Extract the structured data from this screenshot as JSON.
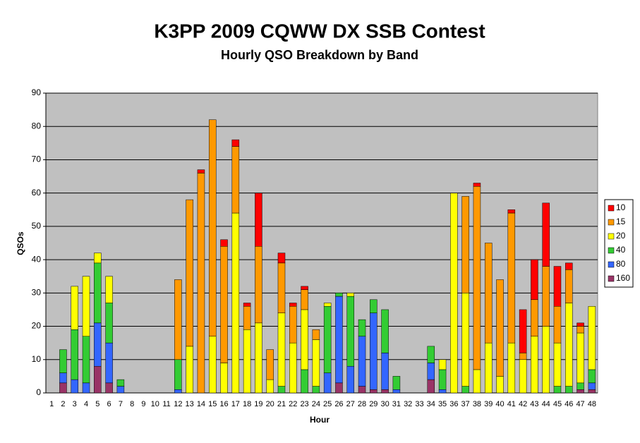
{
  "chart_data": {
    "type": "stacked-bar",
    "title": "K3PP 2009 CQWW DX SSB Contest",
    "subtitle": "Hourly QSO Breakdown by Band",
    "x_label": "Hour",
    "y_label": "QSOs",
    "categories": [
      "1",
      "2",
      "3",
      "4",
      "5",
      "6",
      "7",
      "8",
      "9",
      "10",
      "11",
      "12",
      "13",
      "14",
      "15",
      "16",
      "17",
      "18",
      "19",
      "20",
      "21",
      "22",
      "23",
      "24",
      "25",
      "26",
      "27",
      "28",
      "29",
      "30",
      "31",
      "32",
      "33",
      "34",
      "35",
      "36",
      "37",
      "38",
      "39",
      "40",
      "41",
      "42",
      "43",
      "44",
      "45",
      "46",
      "47",
      "48"
    ],
    "series": [
      {
        "name": "160",
        "color": "#993366",
        "values": [
          0,
          3,
          0,
          0,
          8,
          3,
          0,
          0,
          0,
          0,
          0,
          0,
          0,
          0,
          0,
          0,
          0,
          0,
          0,
          0,
          0,
          0,
          0,
          0,
          0,
          3,
          0,
          2,
          1,
          1,
          0,
          0,
          0,
          4,
          0,
          0,
          0,
          0,
          0,
          0,
          0,
          0,
          0,
          0,
          0,
          0,
          1,
          1
        ]
      },
      {
        "name": "80",
        "color": "#3366ff",
        "values": [
          0,
          3,
          4,
          3,
          13,
          12,
          2,
          0,
          0,
          0,
          0,
          1,
          0,
          0,
          0,
          0,
          0,
          0,
          0,
          0,
          0,
          0,
          0,
          0,
          6,
          26,
          8,
          15,
          23,
          11,
          1,
          0,
          0,
          5,
          1,
          0,
          0,
          0,
          0,
          0,
          0,
          0,
          0,
          0,
          0,
          0,
          0,
          2
        ]
      },
      {
        "name": "40",
        "color": "#33cc33",
        "values": [
          0,
          7,
          15,
          14,
          18,
          12,
          2,
          0,
          0,
          0,
          0,
          9,
          0,
          0,
          0,
          0,
          0,
          0,
          0,
          0,
          2,
          0,
          7,
          2,
          20,
          1,
          21,
          5,
          4,
          13,
          4,
          0,
          0,
          5,
          6,
          0,
          2,
          0,
          0,
          0,
          0,
          0,
          0,
          0,
          2,
          2,
          2,
          4
        ]
      },
      {
        "name": "20",
        "color": "#ffff00",
        "values": [
          0,
          0,
          13,
          18,
          3,
          8,
          0,
          0,
          0,
          0,
          0,
          0,
          14,
          0,
          17,
          9,
          54,
          19,
          21,
          4,
          22,
          15,
          18,
          14,
          1,
          0,
          1,
          0,
          0,
          0,
          0,
          0,
          0,
          0,
          3,
          60,
          28,
          7,
          15,
          5,
          15,
          10,
          17,
          20,
          13,
          25,
          15,
          19
        ]
      },
      {
        "name": "15",
        "color": "#ff9900",
        "values": [
          0,
          0,
          0,
          0,
          0,
          0,
          0,
          0,
          0,
          0,
          0,
          24,
          44,
          66,
          65,
          35,
          20,
          7,
          23,
          9,
          15,
          11,
          6,
          3,
          0,
          0,
          0,
          0,
          0,
          0,
          0,
          0,
          0,
          0,
          0,
          0,
          29,
          55,
          30,
          29,
          39,
          2,
          11,
          18,
          11,
          10,
          2,
          0
        ]
      },
      {
        "name": "10",
        "color": "#ff0000",
        "values": [
          0,
          0,
          0,
          0,
          0,
          0,
          0,
          0,
          0,
          0,
          0,
          0,
          0,
          1,
          0,
          2,
          2,
          1,
          16,
          0,
          3,
          1,
          1,
          0,
          0,
          0,
          0,
          0,
          0,
          0,
          0,
          0,
          0,
          0,
          0,
          0,
          0,
          1,
          0,
          0,
          1,
          13,
          12,
          19,
          12,
          2,
          1,
          0
        ]
      }
    ],
    "ylim": [
      0,
      90
    ],
    "yticks": [
      0,
      10,
      20,
      30,
      40,
      50,
      60,
      70,
      80,
      90
    ],
    "grid": true,
    "legend": "right",
    "plot_background": "#c0c0c0"
  }
}
